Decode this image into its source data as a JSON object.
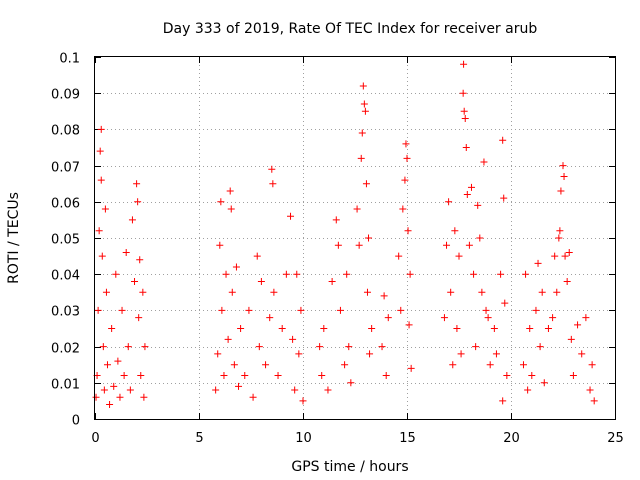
{
  "chart_data": {
    "type": "scatter",
    "title": "Day 333 of 2019, Rate Of TEC Index for receiver arub",
    "xlabel": "GPS time / hours",
    "ylabel": "ROTI / TECUs",
    "xlim": [
      0,
      25
    ],
    "ylim": [
      0,
      0.1
    ],
    "x_ticks": [
      "0",
      "5",
      "10",
      "15",
      "20",
      "25"
    ],
    "y_ticks": [
      "0",
      "0.01",
      "0.02",
      "0.03",
      "0.04",
      "0.05",
      "0.06",
      "0.07",
      "0.08",
      "0.09",
      "0.1"
    ],
    "grid": true,
    "marker": "+",
    "color": "#ff0000",
    "series": [
      {
        "points": [
          [
            0.05,
            0.006
          ],
          [
            0.1,
            0.012
          ],
          [
            0.15,
            0.03
          ],
          [
            0.2,
            0.052
          ],
          [
            0.25,
            0.074
          ],
          [
            0.3,
            0.08
          ],
          [
            0.3,
            0.066
          ],
          [
            0.35,
            0.045
          ],
          [
            0.4,
            0.02
          ],
          [
            0.45,
            0.008
          ],
          [
            0.5,
            0.058
          ],
          [
            0.55,
            0.035
          ],
          [
            0.6,
            0.015
          ],
          [
            0.7,
            0.004
          ],
          [
            0.8,
            0.025
          ],
          [
            0.9,
            0.009
          ],
          [
            1.0,
            0.04
          ],
          [
            1.1,
            0.016
          ],
          [
            1.2,
            0.006
          ],
          [
            1.3,
            0.03
          ],
          [
            1.4,
            0.012
          ],
          [
            1.5,
            0.046
          ],
          [
            1.6,
            0.02
          ],
          [
            1.7,
            0.008
          ],
          [
            1.8,
            0.055
          ],
          [
            1.9,
            0.038
          ],
          [
            2.0,
            0.065
          ],
          [
            2.05,
            0.06
          ],
          [
            2.1,
            0.028
          ],
          [
            2.15,
            0.044
          ],
          [
            2.2,
            0.012
          ],
          [
            2.3,
            0.035
          ],
          [
            2.35,
            0.006
          ],
          [
            2.4,
            0.02
          ],
          [
            5.8,
            0.008
          ],
          [
            5.9,
            0.018
          ],
          [
            6.0,
            0.048
          ],
          [
            6.05,
            0.06
          ],
          [
            6.1,
            0.03
          ],
          [
            6.2,
            0.012
          ],
          [
            6.3,
            0.04
          ],
          [
            6.4,
            0.022
          ],
          [
            6.5,
            0.063
          ],
          [
            6.55,
            0.058
          ],
          [
            6.6,
            0.035
          ],
          [
            6.7,
            0.015
          ],
          [
            6.8,
            0.042
          ],
          [
            6.9,
            0.009
          ],
          [
            7.0,
            0.025
          ],
          [
            7.2,
            0.012
          ],
          [
            7.4,
            0.03
          ],
          [
            7.6,
            0.006
          ],
          [
            7.8,
            0.045
          ],
          [
            7.9,
            0.02
          ],
          [
            8.0,
            0.038
          ],
          [
            8.2,
            0.015
          ],
          [
            8.4,
            0.028
          ],
          [
            8.5,
            0.069
          ],
          [
            8.55,
            0.065
          ],
          [
            8.6,
            0.035
          ],
          [
            8.8,
            0.012
          ],
          [
            9.0,
            0.025
          ],
          [
            9.2,
            0.04
          ],
          [
            9.4,
            0.056
          ],
          [
            9.5,
            0.022
          ],
          [
            9.6,
            0.008
          ],
          [
            9.7,
            0.04
          ],
          [
            9.8,
            0.018
          ],
          [
            9.9,
            0.03
          ],
          [
            10.0,
            0.005
          ],
          [
            10.8,
            0.02
          ],
          [
            10.9,
            0.012
          ],
          [
            11.0,
            0.025
          ],
          [
            11.2,
            0.008
          ],
          [
            11.4,
            0.038
          ],
          [
            11.6,
            0.055
          ],
          [
            11.7,
            0.048
          ],
          [
            11.8,
            0.03
          ],
          [
            12.0,
            0.015
          ],
          [
            12.1,
            0.04
          ],
          [
            12.2,
            0.02
          ],
          [
            12.3,
            0.01
          ],
          [
            12.6,
            0.058
          ],
          [
            12.7,
            0.048
          ],
          [
            12.8,
            0.072
          ],
          [
            12.85,
            0.079
          ],
          [
            12.9,
            0.092
          ],
          [
            12.95,
            0.087
          ],
          [
            13.0,
            0.085
          ],
          [
            13.05,
            0.065
          ],
          [
            13.1,
            0.035
          ],
          [
            13.15,
            0.05
          ],
          [
            13.2,
            0.018
          ],
          [
            13.3,
            0.025
          ],
          [
            13.8,
            0.02
          ],
          [
            13.9,
            0.034
          ],
          [
            14.0,
            0.012
          ],
          [
            14.1,
            0.028
          ],
          [
            14.6,
            0.045
          ],
          [
            14.7,
            0.03
          ],
          [
            14.8,
            0.058
          ],
          [
            14.9,
            0.066
          ],
          [
            14.95,
            0.076
          ],
          [
            15.0,
            0.072
          ],
          [
            15.05,
            0.052
          ],
          [
            15.1,
            0.026
          ],
          [
            15.15,
            0.04
          ],
          [
            15.2,
            0.014
          ],
          [
            16.8,
            0.028
          ],
          [
            16.9,
            0.048
          ],
          [
            17.0,
            0.06
          ],
          [
            17.1,
            0.035
          ],
          [
            17.2,
            0.015
          ],
          [
            17.3,
            0.052
          ],
          [
            17.4,
            0.025
          ],
          [
            17.5,
            0.045
          ],
          [
            17.6,
            0.018
          ],
          [
            17.7,
            0.09
          ],
          [
            17.72,
            0.098
          ],
          [
            17.75,
            0.085
          ],
          [
            17.8,
            0.083
          ],
          [
            17.85,
            0.075
          ],
          [
            17.9,
            0.062
          ],
          [
            18.0,
            0.048
          ],
          [
            18.1,
            0.064
          ],
          [
            18.2,
            0.04
          ],
          [
            18.3,
            0.02
          ],
          [
            18.4,
            0.059
          ],
          [
            18.5,
            0.05
          ],
          [
            18.6,
            0.035
          ],
          [
            18.7,
            0.071
          ],
          [
            18.8,
            0.03
          ],
          [
            18.9,
            0.028
          ],
          [
            19.0,
            0.015
          ],
          [
            19.2,
            0.025
          ],
          [
            19.3,
            0.018
          ],
          [
            19.5,
            0.04
          ],
          [
            19.6,
            0.077
          ],
          [
            19.65,
            0.061
          ],
          [
            19.7,
            0.032
          ],
          [
            19.8,
            0.012
          ],
          [
            19.6,
            0.005
          ],
          [
            20.6,
            0.015
          ],
          [
            20.7,
            0.04
          ],
          [
            20.8,
            0.008
          ],
          [
            20.9,
            0.025
          ],
          [
            21.0,
            0.012
          ],
          [
            21.2,
            0.03
          ],
          [
            21.3,
            0.043
          ],
          [
            21.4,
            0.02
          ],
          [
            21.5,
            0.035
          ],
          [
            21.6,
            0.01
          ],
          [
            21.8,
            0.025
          ],
          [
            22.0,
            0.028
          ],
          [
            22.1,
            0.045
          ],
          [
            22.2,
            0.035
          ],
          [
            22.3,
            0.05
          ],
          [
            22.35,
            0.052
          ],
          [
            22.4,
            0.063
          ],
          [
            22.5,
            0.07
          ],
          [
            22.55,
            0.067
          ],
          [
            22.6,
            0.045
          ],
          [
            22.7,
            0.038
          ],
          [
            22.8,
            0.046
          ],
          [
            22.9,
            0.022
          ],
          [
            23.0,
            0.012
          ],
          [
            23.2,
            0.026
          ],
          [
            23.4,
            0.018
          ],
          [
            23.6,
            0.028
          ],
          [
            23.8,
            0.008
          ],
          [
            23.9,
            0.015
          ],
          [
            24.0,
            0.005
          ]
        ]
      }
    ]
  }
}
